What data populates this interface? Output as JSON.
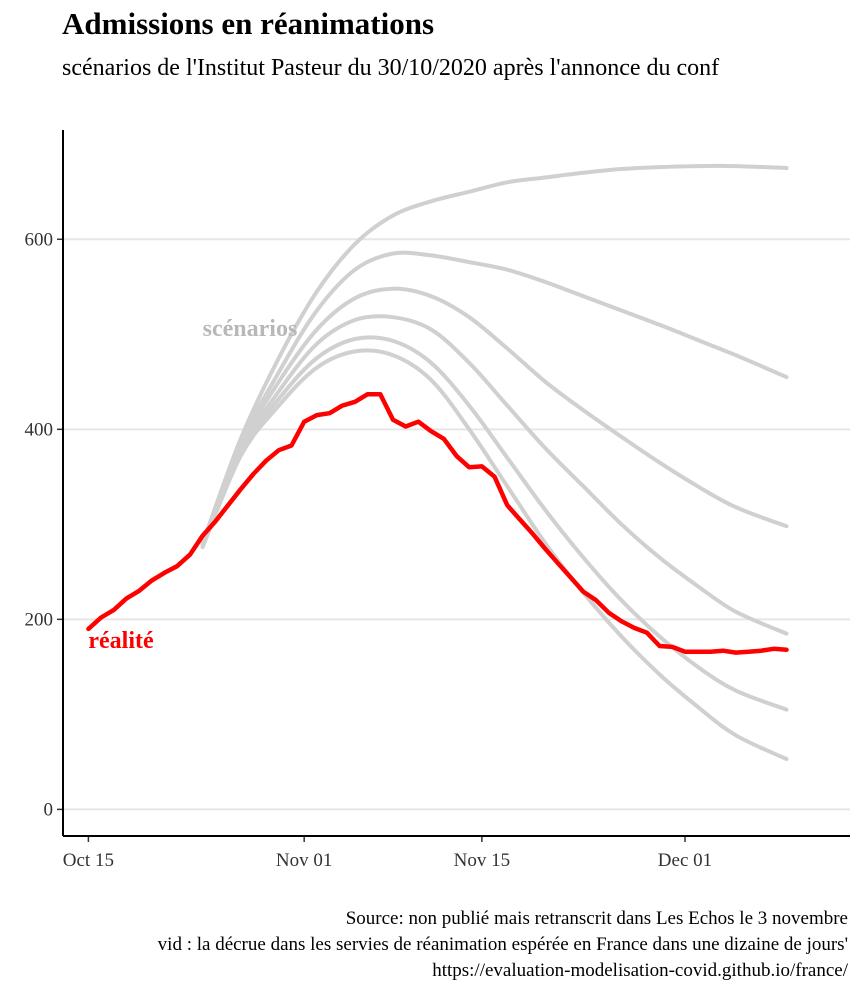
{
  "title": "Admissions en réanimations",
  "subtitle": "scénarios de l'Institut Pasteur du 30/10/2020 après l'annonce du conf",
  "caption": {
    "line1": "Source:  non publié mais retranscrit dans Les Echos le 3 novembre",
    "line2": "vid : la décrue dans les servies de réanimation espérée en France dans une dizaine de jours'",
    "line3": "https://evaluation-modelisation-covid.github.io/france/"
  },
  "chart_data": {
    "type": "line",
    "x_unit": "date",
    "xlim": [
      "2020-10-13",
      "2020-12-14"
    ],
    "ylim": [
      -28,
      715
    ],
    "x_ticks": [
      {
        "date": "2020-10-15",
        "label": "Oct 15"
      },
      {
        "date": "2020-11-01",
        "label": "Nov 01"
      },
      {
        "date": "2020-11-15",
        "label": "Nov 15"
      },
      {
        "date": "2020-12-01",
        "label": "Dec 01"
      }
    ],
    "y_ticks": [
      0,
      200,
      400,
      600
    ],
    "grid": "horizontal",
    "colors": {
      "reality": "#ff0000",
      "scenario": "#d0d0d0",
      "scenario_label": "#b8b8b8",
      "grid": "#e6e6e6"
    },
    "annotations": [
      {
        "text": "scénarios",
        "date": "2020-10-24",
        "y": 498,
        "color": "#b8b8b8"
      },
      {
        "text": "réalité",
        "date": "2020-10-15",
        "y": 170,
        "color": "#ff0000"
      }
    ],
    "series": [
      {
        "role": "reality",
        "x": [
          "2020-10-15",
          "2020-10-16",
          "2020-10-17",
          "2020-10-18",
          "2020-10-19",
          "2020-10-20",
          "2020-10-21",
          "2020-10-22",
          "2020-10-23",
          "2020-10-24",
          "2020-10-25",
          "2020-10-26",
          "2020-10-27",
          "2020-10-28",
          "2020-10-29",
          "2020-10-30",
          "2020-10-31",
          "2020-11-01",
          "2020-11-02",
          "2020-11-03",
          "2020-11-04",
          "2020-11-05",
          "2020-11-06",
          "2020-11-07",
          "2020-11-08",
          "2020-11-09",
          "2020-11-10",
          "2020-11-11",
          "2020-11-12",
          "2020-11-13",
          "2020-11-14",
          "2020-11-15",
          "2020-11-16",
          "2020-11-17",
          "2020-11-18",
          "2020-11-19",
          "2020-11-20",
          "2020-11-21",
          "2020-11-22",
          "2020-11-23",
          "2020-11-24",
          "2020-11-25",
          "2020-11-26",
          "2020-11-27",
          "2020-11-28",
          "2020-11-29",
          "2020-11-30",
          "2020-12-01",
          "2020-12-02",
          "2020-12-03",
          "2020-12-04",
          "2020-12-05",
          "2020-12-06",
          "2020-12-07",
          "2020-12-08",
          "2020-12-09"
        ],
        "values": [
          190,
          202,
          210,
          222,
          230,
          241,
          249,
          256,
          268,
          288,
          303,
          320,
          337,
          353,
          367,
          378,
          383,
          408,
          415,
          417,
          425,
          429,
          437,
          437,
          410,
          403,
          408,
          398,
          390,
          372,
          360,
          361,
          350,
          320,
          305,
          290,
          274,
          259,
          244,
          229,
          220,
          207,
          198,
          191,
          186,
          172,
          171,
          166,
          166,
          166,
          167,
          165,
          166,
          167,
          169,
          168
        ]
      },
      {
        "role": "scenario",
        "x": [
          "2020-10-24",
          "2020-10-27",
          "2020-10-30",
          "2020-11-02",
          "2020-11-05",
          "2020-11-08",
          "2020-11-11",
          "2020-11-14",
          "2020-11-17",
          "2020-11-20",
          "2020-11-23",
          "2020-11-26",
          "2020-11-29",
          "2020-12-02",
          "2020-12-05",
          "2020-12-09"
        ],
        "values": [
          280,
          390,
          475,
          545,
          595,
          625,
          640,
          650,
          660,
          665,
          670,
          674,
          676,
          677,
          677,
          675
        ]
      },
      {
        "role": "scenario",
        "x": [
          "2020-10-24",
          "2020-10-27",
          "2020-10-30",
          "2020-11-02",
          "2020-11-05",
          "2020-11-08",
          "2020-11-11",
          "2020-11-14",
          "2020-11-17",
          "2020-11-20",
          "2020-11-23",
          "2020-11-26",
          "2020-11-29",
          "2020-12-02",
          "2020-12-05",
          "2020-12-09"
        ],
        "values": [
          280,
          385,
          460,
          525,
          568,
          585,
          583,
          576,
          568,
          555,
          540,
          525,
          510,
          494,
          478,
          455
        ]
      },
      {
        "role": "scenario",
        "x": [
          "2020-10-24",
          "2020-10-27",
          "2020-10-30",
          "2020-11-02",
          "2020-11-05",
          "2020-11-08",
          "2020-11-11",
          "2020-11-14",
          "2020-11-17",
          "2020-11-20",
          "2020-11-23",
          "2020-11-26",
          "2020-11-29",
          "2020-12-02",
          "2020-12-05",
          "2020-12-09"
        ],
        "values": [
          280,
          382,
          450,
          505,
          538,
          548,
          540,
          518,
          485,
          450,
          420,
          392,
          365,
          340,
          318,
          298
        ]
      },
      {
        "role": "scenario",
        "x": [
          "2020-10-24",
          "2020-10-27",
          "2020-10-30",
          "2020-11-02",
          "2020-11-05",
          "2020-11-08",
          "2020-11-11",
          "2020-11-14",
          "2020-11-17",
          "2020-11-20",
          "2020-11-23",
          "2020-11-26",
          "2020-11-29",
          "2020-12-02",
          "2020-12-05",
          "2020-12-09"
        ],
        "values": [
          280,
          378,
          440,
          490,
          515,
          518,
          505,
          470,
          425,
          380,
          340,
          300,
          265,
          235,
          208,
          185
        ]
      },
      {
        "role": "scenario",
        "x": [
          "2020-10-24",
          "2020-10-27",
          "2020-10-30",
          "2020-11-02",
          "2020-11-05",
          "2020-11-08",
          "2020-11-11",
          "2020-11-14",
          "2020-11-17",
          "2020-11-20",
          "2020-11-23",
          "2020-11-26",
          "2020-11-29",
          "2020-12-02",
          "2020-12-05",
          "2020-12-09"
        ],
        "values": [
          278,
          375,
          432,
          475,
          495,
          493,
          470,
          425,
          370,
          315,
          265,
          220,
          182,
          150,
          125,
          105
        ]
      },
      {
        "role": "scenario",
        "x": [
          "2020-10-24",
          "2020-10-27",
          "2020-10-30",
          "2020-11-02",
          "2020-11-05",
          "2020-11-08",
          "2020-11-11",
          "2020-11-14",
          "2020-11-17",
          "2020-11-20",
          "2020-11-23",
          "2020-11-26",
          "2020-11-29",
          "2020-12-02",
          "2020-12-05",
          "2020-12-09"
        ],
        "values": [
          276,
          372,
          425,
          465,
          482,
          478,
          452,
          400,
          340,
          280,
          228,
          182,
          142,
          108,
          78,
          53
        ]
      }
    ]
  }
}
